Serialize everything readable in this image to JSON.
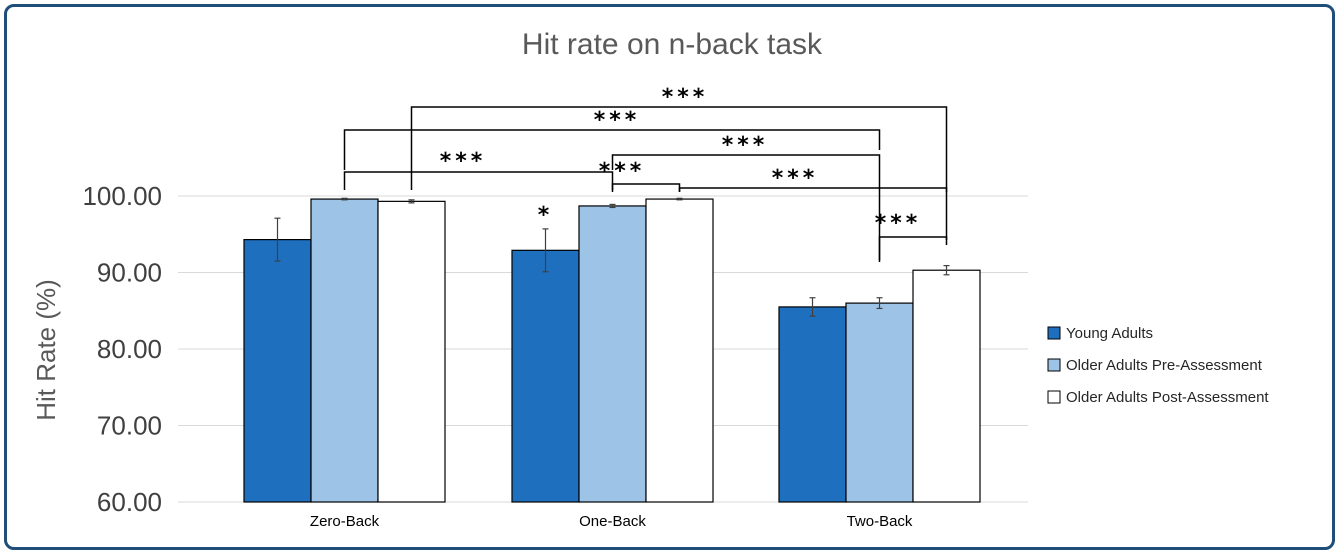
{
  "chart_data": {
    "type": "bar",
    "title": "Hit rate on n-back task",
    "xlabel": "",
    "ylabel": "Hit Rate (%)",
    "ylim": [
      60,
      100
    ],
    "yticks": [
      "60.00",
      "70.00",
      "80.00",
      "90.00",
      "100.00"
    ],
    "grid": true,
    "legend_position": "right",
    "categories": [
      "Zero-Back",
      "One-Back",
      "Two-Back"
    ],
    "series": [
      {
        "name": "Young Adults",
        "color": "#1f6fbf",
        "values": [
          94.3,
          92.9,
          85.5
        ],
        "errors": [
          2.8,
          2.8,
          1.2
        ]
      },
      {
        "name": "Older Adults Pre-Assessment",
        "color": "#9dc3e6",
        "values": [
          99.6,
          98.7,
          86.0
        ],
        "errors": [
          0.1,
          0.2,
          0.7
        ]
      },
      {
        "name": "Older Adults Post-Assessment",
        "color": "#ffffff",
        "values": [
          99.3,
          99.6,
          90.3
        ],
        "errors": [
          0.2,
          0.1,
          0.6
        ]
      }
    ],
    "annotations": {
      "single": "*",
      "triple": "***"
    }
  }
}
